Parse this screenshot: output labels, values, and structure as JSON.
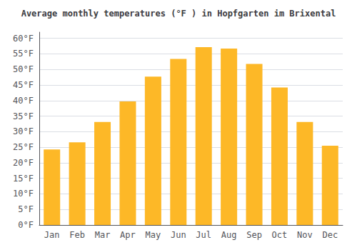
{
  "chart_data": {
    "type": "bar",
    "title": "Average monthly temperatures (°F ) in Hopfgarten im Brixental",
    "categories": [
      "Jan",
      "Feb",
      "Mar",
      "Apr",
      "May",
      "Jun",
      "Jul",
      "Aug",
      "Sep",
      "Oct",
      "Nov",
      "Dec"
    ],
    "values": [
      24.3,
      26.6,
      33.1,
      39.7,
      47.7,
      53.4,
      57.2,
      56.7,
      51.8,
      44.2,
      33.1,
      25.5
    ],
    "color": "#FDB827",
    "ylim": [
      0,
      62
    ],
    "yticks": [
      {
        "value": 0,
        "label": "0°F"
      },
      {
        "value": 5,
        "label": "5°F"
      },
      {
        "value": 10,
        "label": "10°F"
      },
      {
        "value": 15,
        "label": "15°F"
      },
      {
        "value": 20,
        "label": "20°F"
      },
      {
        "value": 25,
        "label": "25°F"
      },
      {
        "value": 30,
        "label": "30°F"
      },
      {
        "value": 35,
        "label": "35°F"
      },
      {
        "value": 40,
        "label": "40°F"
      },
      {
        "value": 45,
        "label": "45°F"
      },
      {
        "value": 50,
        "label": "50°F"
      },
      {
        "value": 55,
        "label": "55°F"
      },
      {
        "value": 60,
        "label": "60°F"
      }
    ],
    "grid": true
  }
}
